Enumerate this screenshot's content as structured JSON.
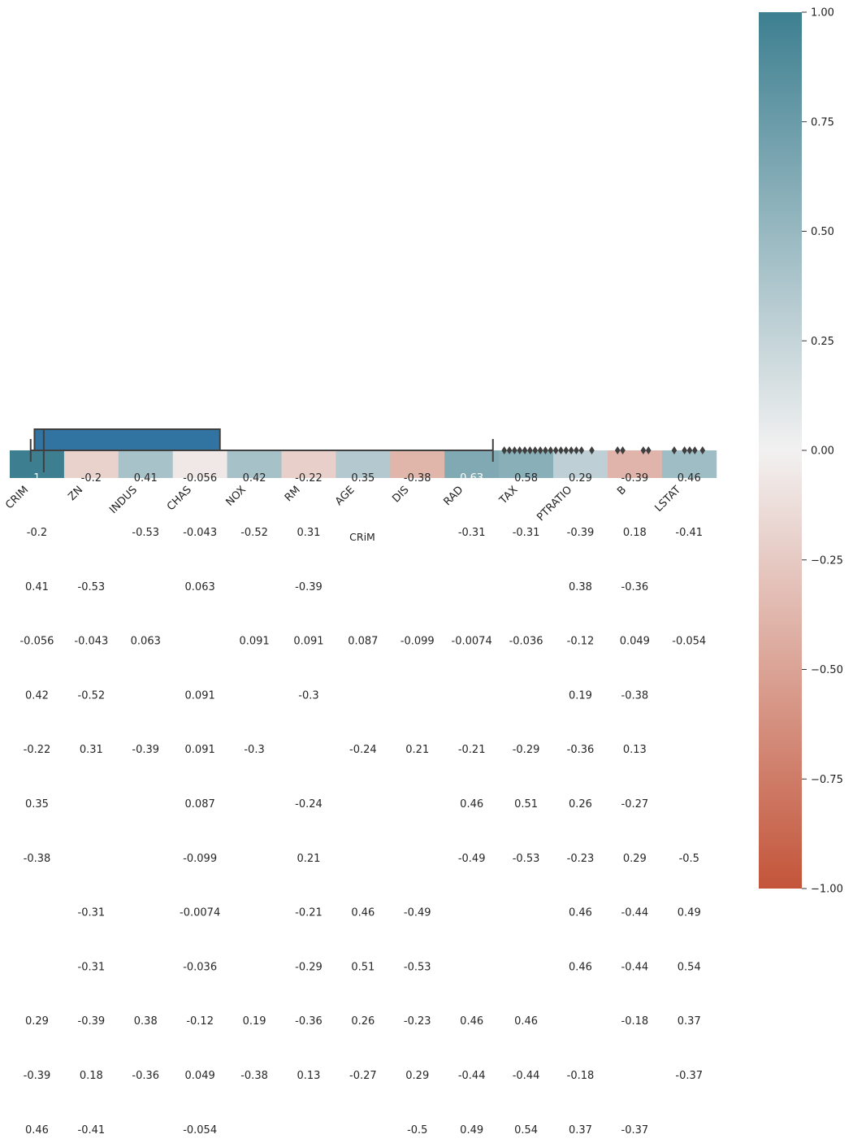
{
  "chart_data": [
    {
      "type": "heatmap",
      "title": "",
      "variables": [
        "CRIM",
        "ZN",
        "INDUS",
        "CHAS",
        "NOX",
        "RM",
        "AGE",
        "DIS",
        "RAD",
        "TAX",
        "PTRATIO",
        "B",
        "LSTAT"
      ],
      "vmin": -1,
      "vmax": 1,
      "colormap": {
        "low": "#c3553a",
        "mid": "#f2f1f1",
        "high": "#3d7f90"
      },
      "colorbar_ticks": [
        "1.00",
        "0.75",
        "0.50",
        "0.25",
        "0.00",
        "−0.25",
        "−0.50",
        "−0.75",
        "−1.00"
      ],
      "row0_values": [
        1,
        -0.2,
        0.41,
        -0.056,
        0.42,
        -0.22,
        0.35,
        -0.38,
        0.63,
        0.58,
        0.29,
        -0.39,
        0.46
      ],
      "row0_labels": [
        "1",
        "-0.2",
        "0.41",
        "-0.056",
        "0.42",
        "-0.22",
        "0.35",
        "-0.38",
        "0.63",
        "0.58",
        "0.29",
        "-0.39",
        "0.46"
      ],
      "annotations": [
        [
          "-0.2",
          "",
          "-0.53",
          "-0.043",
          "-0.52",
          "0.31",
          "",
          "",
          "-0.31",
          "-0.31",
          "-0.39",
          "0.18",
          "-0.41"
        ],
        [
          "0.41",
          "-0.53",
          "",
          "0.063",
          "",
          "-0.39",
          "",
          "",
          "",
          "",
          "0.38",
          "-0.36",
          ""
        ],
        [
          "-0.056",
          "-0.043",
          "0.063",
          "",
          "0.091",
          "0.091",
          "0.087",
          "-0.099",
          "-0.0074",
          "-0.036",
          "-0.12",
          "0.049",
          "-0.054"
        ],
        [
          "0.42",
          "-0.52",
          "",
          "0.091",
          "",
          "-0.3",
          "",
          "",
          "",
          "",
          "0.19",
          "-0.38",
          ""
        ],
        [
          "-0.22",
          "0.31",
          "-0.39",
          "0.091",
          "-0.3",
          "",
          "-0.24",
          "0.21",
          "-0.21",
          "-0.29",
          "-0.36",
          "0.13",
          ""
        ],
        [
          "0.35",
          "",
          "",
          "0.087",
          "",
          "-0.24",
          "",
          "",
          "0.46",
          "0.51",
          "0.26",
          "-0.27",
          ""
        ],
        [
          "-0.38",
          "",
          "",
          "-0.099",
          "",
          "0.21",
          "",
          "",
          "-0.49",
          "-0.53",
          "-0.23",
          "0.29",
          "-0.5"
        ],
        [
          "",
          "-0.31",
          "",
          "-0.0074",
          "",
          "-0.21",
          "0.46",
          "-0.49",
          "",
          "",
          "0.46",
          "-0.44",
          "0.49"
        ],
        [
          "",
          "-0.31",
          "",
          "-0.036",
          "",
          "-0.29",
          "0.51",
          "-0.53",
          "",
          "",
          "0.46",
          "-0.44",
          "0.54"
        ],
        [
          "0.29",
          "-0.39",
          "0.38",
          "-0.12",
          "0.19",
          "-0.36",
          "0.26",
          "-0.23",
          "0.46",
          "0.46",
          "",
          "-0.18",
          "0.37"
        ],
        [
          "-0.39",
          "0.18",
          "-0.36",
          "0.049",
          "-0.38",
          "0.13",
          "-0.27",
          "0.29",
          "-0.44",
          "-0.44",
          "-0.18",
          "",
          "-0.37"
        ],
        [
          "0.46",
          "-0.41",
          "",
          "-0.054",
          "",
          "",
          "",
          "-0.5",
          "0.49",
          "0.54",
          "0.37",
          "-0.37",
          ""
        ]
      ]
    },
    {
      "type": "boxplot",
      "xlabel": "CRiM",
      "variable": "CRIM",
      "q1": 0.08,
      "median": 0.26,
      "q3": 3.68,
      "whisker_low": 0.006,
      "whisker_high": 8.98,
      "xlim": [
        -0.4,
        13.1
      ],
      "outliers": [
        9.2,
        9.3,
        9.4,
        9.5,
        9.6,
        9.7,
        9.8,
        9.9,
        10.0,
        10.1,
        10.2,
        10.3,
        10.4,
        10.5,
        10.6,
        10.7,
        10.9,
        11.4,
        11.5,
        11.9,
        12.0,
        12.5,
        12.7,
        12.8,
        12.9,
        13.05
      ]
    }
  ]
}
